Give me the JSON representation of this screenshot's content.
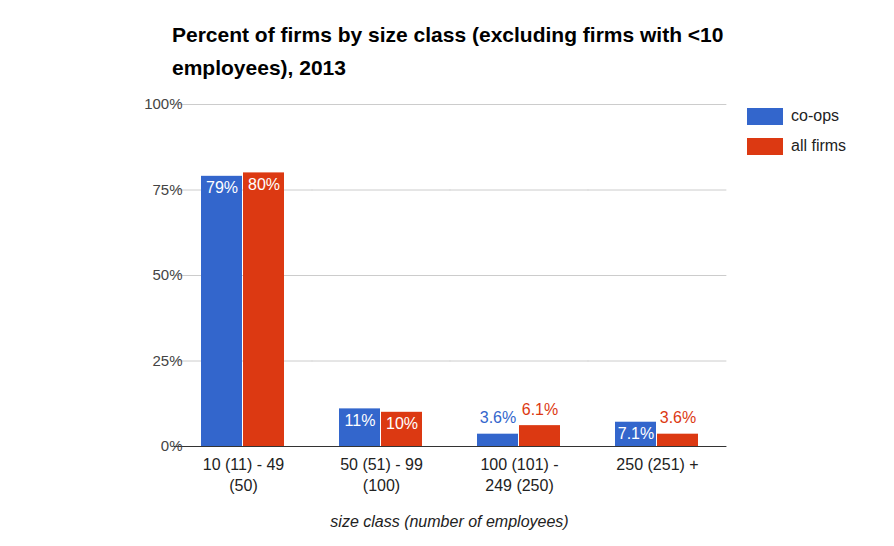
{
  "chart_data": {
    "type": "bar",
    "title": "Percent of firms by size class (excluding firms with <10 employees), 2013",
    "x_label": "size class (number of employees)",
    "categories": [
      "10 (11) - 49\n(50)",
      "50 (51) - 99\n(100)",
      "100 (101) -\n249 (250)",
      "250 (251) +"
    ],
    "series": [
      {
        "name": "co-ops",
        "color": "#3366cc",
        "values": [
          79,
          11,
          3.6,
          7.1
        ],
        "value_labels": [
          "79%",
          "11%",
          "3.6%",
          "7.1%"
        ]
      },
      {
        "name": "all firms",
        "color": "#dc3912",
        "values": [
          80,
          10,
          6.1,
          3.6
        ],
        "value_labels": [
          "80%",
          "10%",
          "6.1%",
          "3.6%"
        ]
      }
    ],
    "ylim": [
      0,
      100
    ],
    "yticks": [
      {
        "value": 0,
        "label": "0%"
      },
      {
        "value": 25,
        "label": "25%"
      },
      {
        "value": 50,
        "label": "50%"
      },
      {
        "value": 75,
        "label": "75%"
      },
      {
        "value": 100,
        "label": "100%"
      }
    ],
    "grid": true,
    "legend": "right",
    "data_labels": true
  }
}
